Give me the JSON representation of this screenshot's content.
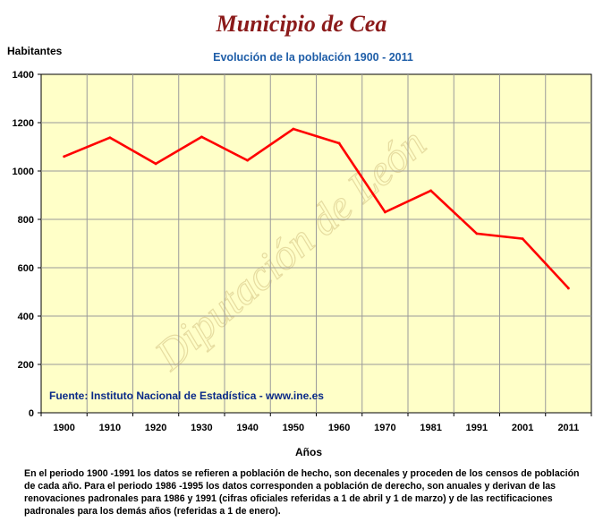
{
  "chart_data": {
    "type": "line",
    "title": "Municipio de Cea",
    "subtitle": "Evolución de la población 1900 - 2011",
    "ylabel": "Habitantes",
    "xlabel": "Años",
    "categories": [
      "1900",
      "1910",
      "1920",
      "1930",
      "1940",
      "1950",
      "1960",
      "1970",
      "1981",
      "1991",
      "2001",
      "2011"
    ],
    "series": [
      {
        "values": [
          1060,
          1138,
          1030,
          1141,
          1044,
          1174,
          1115,
          830,
          919,
          741,
          720,
          515
        ]
      }
    ],
    "ylim": [
      0,
      1400
    ],
    "yticks": [
      "0",
      "200",
      "400",
      "600",
      "800",
      "1000",
      "1200",
      "1400"
    ],
    "grid": true,
    "plot_background": "#ffffc8",
    "line_color": "#ff0000",
    "source": "Fuente: Instituto Nacional de Estadística - www.ine.es",
    "watermark": "Diputación de León",
    "note": "En el periodo 1900 -1991 los datos se refieren a población de hecho, son decenales y proceden de los censos de población de cada año. Para el periodo 1986 -1995 los datos corresponden a población de derecho, son anuales y derivan de las renovaciones padronales para 1986 y 1991 (cifras oficiales referidas a 1 de abril y 1 de marzo) y de las rectificaciones padronales para los demás años (referidas a 1 de enero)."
  }
}
